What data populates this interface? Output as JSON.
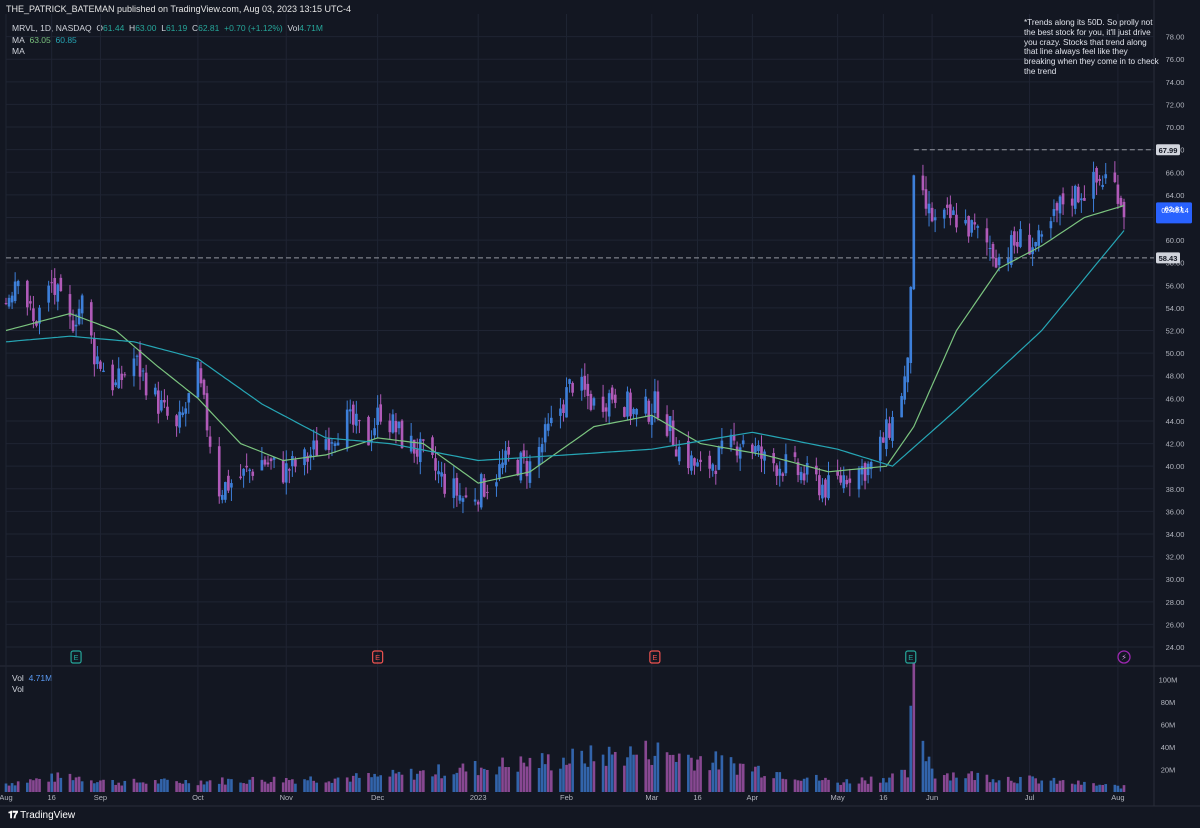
{
  "publisher": "THE_PATRICK_BATEMAN published on TradingView.com, Aug 03, 2023 13:15 UTC-4",
  "legend": {
    "symbol": "MRVL, 1D, NASDAQ",
    "o_label": "O",
    "o": "61.44",
    "h_label": "H",
    "h": "63.00",
    "l_label": "L",
    "l": "61.19",
    "c_label": "C",
    "c": "62.81",
    "chg": "+0.70 (+1.12%)",
    "vol_label": "Vol",
    "vol": "4.71M",
    "ma1_label": "MA",
    "ma1_a": "63.05",
    "ma1_b": "60.85",
    "ma2_label": "MA",
    "vol_pane_label": "Vol",
    "vol_pane_value": "4.71M",
    "vol_pane_label2": "Vol"
  },
  "note": "*Trends along its 50D. So prolly not the best stock for you, it'll just drive you crazy. Stocks that trend along that line always feel like they breaking when they come in to check the trend",
  "price_tags": {
    "upper": "67.99",
    "lower": "58.43",
    "last": "62.81",
    "countdown": "02:46:14"
  },
  "watermark": "TradingView",
  "colors": {
    "background": "#131722",
    "up": "#3d7fd9",
    "down": "#b05ab8",
    "ma_fast": "#7bc47f",
    "ma_slow": "#26a6b5",
    "grid": "#1f2433",
    "last_tag": "#2962ff"
  },
  "events": [
    {
      "label": "E",
      "x": "2022-08-24",
      "color": "#26a69a"
    },
    {
      "label": "E",
      "x": "2022-12-01",
      "color": "#ef5350"
    },
    {
      "label": "E",
      "x": "2023-03-02",
      "color": "#ef5350"
    },
    {
      "label": "E",
      "x": "2023-05-25",
      "color": "#26a69a"
    },
    {
      "label": "⚡",
      "x": "2023-08-03",
      "color": "#9c27b0"
    }
  ],
  "chart_data": {
    "type": "candlestick",
    "title": "MRVL, 1D, NASDAQ",
    "x_ticks": [
      "Aug",
      "16",
      "Sep",
      "Oct",
      "Nov",
      "Dec",
      "2023",
      "Feb",
      "Mar",
      "16",
      "Apr",
      "May",
      "16",
      "Jun",
      "Jul",
      "Aug"
    ],
    "y_ticks": [
      "24.00",
      "26.00",
      "28.00",
      "30.00",
      "32.00",
      "34.00",
      "36.00",
      "38.00",
      "40.00",
      "42.00",
      "44.00",
      "46.00",
      "48.00",
      "50.00",
      "52.00",
      "54.00",
      "56.00",
      "58.00",
      "60.00",
      "62.00",
      "64.00",
      "66.00",
      "68.00",
      "70.00",
      "72.00",
      "74.00",
      "76.00",
      "78.00"
    ],
    "ylim": [
      22.5,
      80
    ],
    "volume_ticks": [
      "20M",
      "40M",
      "60M",
      "80M",
      "100M"
    ],
    "volume_lim": [
      0,
      110
    ],
    "horizontal_levels": [
      67.99,
      58.43
    ],
    "last_price": 62.81,
    "close_path": [
      [
        "2022-08-01",
        54.5
      ],
      [
        "2022-08-05",
        57.5
      ],
      [
        "2022-08-10",
        52.5
      ],
      [
        "2022-08-16",
        56.0
      ],
      [
        "2022-08-22",
        52.5
      ],
      [
        "2022-08-26",
        54.5
      ],
      [
        "2022-08-30",
        50.0
      ],
      [
        "2022-09-06",
        47.0
      ],
      [
        "2022-09-12",
        49.5
      ],
      [
        "2022-09-19",
        46.0
      ],
      [
        "2022-09-26",
        43.0
      ],
      [
        "2022-10-03",
        48.0
      ],
      [
        "2022-10-10",
        38.0
      ],
      [
        "2022-10-17",
        39.0
      ],
      [
        "2022-10-24",
        40.5
      ],
      [
        "2022-10-31",
        39.5
      ],
      [
        "2022-11-07",
        40.5
      ],
      [
        "2022-11-14",
        42.5
      ],
      [
        "2022-11-21",
        44.0
      ],
      [
        "2022-11-28",
        42.5
      ],
      [
        "2022-12-02",
        45.0
      ],
      [
        "2022-12-09",
        42.5
      ],
      [
        "2022-12-16",
        41.0
      ],
      [
        "2022-12-23",
        38.5
      ],
      [
        "2022-12-30",
        37.0
      ],
      [
        "2023-01-06",
        38.5
      ],
      [
        "2023-01-13",
        40.5
      ],
      [
        "2023-01-20",
        40.0
      ],
      [
        "2023-01-27",
        43.5
      ],
      [
        "2023-02-03",
        47.5
      ],
      [
        "2023-02-10",
        45.5
      ],
      [
        "2023-02-17",
        46.5
      ],
      [
        "2023-02-24",
        44.5
      ],
      [
        "2023-03-03",
        45.5
      ],
      [
        "2023-03-10",
        41.5
      ],
      [
        "2023-03-17",
        39.5
      ],
      [
        "2023-03-24",
        41.0
      ],
      [
        "2023-03-31",
        42.5
      ],
      [
        "2023-04-07",
        40.5
      ],
      [
        "2023-04-14",
        40.0
      ],
      [
        "2023-04-21",
        39.0
      ],
      [
        "2023-04-28",
        38.0
      ],
      [
        "2023-05-05",
        39.5
      ],
      [
        "2023-05-12",
        40.0
      ],
      [
        "2023-05-19",
        44.0
      ],
      [
        "2023-05-24",
        48.5
      ],
      [
        "2023-05-26",
        64.5
      ],
      [
        "2023-06-02",
        61.5
      ],
      [
        "2023-06-09",
        62.0
      ],
      [
        "2023-06-16",
        60.5
      ],
      [
        "2023-06-23",
        58.5
      ],
      [
        "2023-06-30",
        60.0
      ],
      [
        "2023-07-07",
        59.5
      ],
      [
        "2023-07-14",
        63.5
      ],
      [
        "2023-07-21",
        64.5
      ],
      [
        "2023-07-28",
        65.5
      ],
      [
        "2023-08-01",
        64.5
      ],
      [
        "2023-08-03",
        62.81
      ]
    ],
    "ma_fast_path": [
      [
        "2022-08-01",
        52.0
      ],
      [
        "2022-08-22",
        53.5
      ],
      [
        "2022-09-06",
        52.0
      ],
      [
        "2022-09-19",
        49.0
      ],
      [
        "2022-10-03",
        46.0
      ],
      [
        "2022-10-17",
        42.0
      ],
      [
        "2022-10-31",
        40.5
      ],
      [
        "2022-11-14",
        41.0
      ],
      [
        "2022-12-01",
        42.5
      ],
      [
        "2022-12-16",
        42.0
      ],
      [
        "2023-01-03",
        38.5
      ],
      [
        "2023-01-20",
        39.5
      ],
      [
        "2023-02-10",
        43.5
      ],
      [
        "2023-03-01",
        44.5
      ],
      [
        "2023-03-17",
        42.0
      ],
      [
        "2023-04-07",
        41.0
      ],
      [
        "2023-04-28",
        39.5
      ],
      [
        "2023-05-17",
        40.0
      ],
      [
        "2023-05-26",
        43.5
      ],
      [
        "2023-06-09",
        52.0
      ],
      [
        "2023-06-23",
        57.5
      ],
      [
        "2023-07-07",
        59.5
      ],
      [
        "2023-07-21",
        62.0
      ],
      [
        "2023-08-03",
        63.05
      ]
    ],
    "ma_slow_path": [
      [
        "2022-08-01",
        51.0
      ],
      [
        "2022-08-22",
        51.5
      ],
      [
        "2022-09-12",
        51.0
      ],
      [
        "2022-10-03",
        49.5
      ],
      [
        "2022-10-24",
        45.5
      ],
      [
        "2022-11-14",
        42.5
      ],
      [
        "2022-12-05",
        42.0
      ],
      [
        "2023-01-03",
        40.5
      ],
      [
        "2023-02-01",
        41.0
      ],
      [
        "2023-03-01",
        41.5
      ],
      [
        "2023-04-03",
        43.0
      ],
      [
        "2023-05-01",
        41.5
      ],
      [
        "2023-05-19",
        40.0
      ],
      [
        "2023-06-09",
        45.0
      ],
      [
        "2023-07-07",
        52.0
      ],
      [
        "2023-08-03",
        60.85
      ]
    ],
    "volume_path": [
      [
        "2022-08-01",
        8
      ],
      [
        "2022-08-22",
        15
      ],
      [
        "2022-09-06",
        9
      ],
      [
        "2022-10-03",
        10
      ],
      [
        "2022-12-01",
        14
      ],
      [
        "2023-03-02",
        38
      ],
      [
        "2023-05-01",
        9
      ],
      [
        "2023-05-24",
        16
      ],
      [
        "2023-05-25",
        62
      ],
      [
        "2023-05-26",
        95
      ],
      [
        "2023-05-30",
        38
      ],
      [
        "2023-06-02",
        18
      ],
      [
        "2023-07-01",
        12
      ],
      [
        "2023-08-03",
        4.71
      ]
    ]
  }
}
